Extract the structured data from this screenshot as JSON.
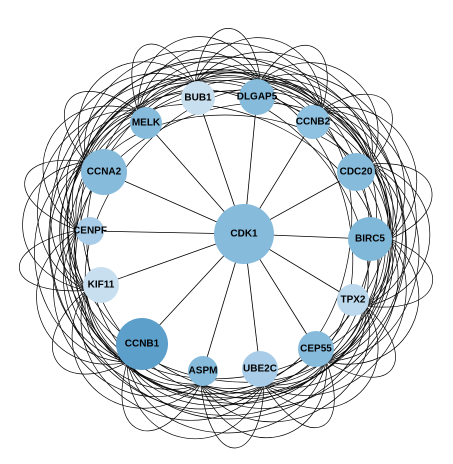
{
  "network": {
    "hub": {
      "label": "CDK1",
      "fill": "#86bbdc"
    },
    "nodes": [
      {
        "id": "bub1",
        "label": "BUB1",
        "fill": "#c8dff0"
      },
      {
        "id": "dlgap5",
        "label": "DLGAP5",
        "fill": "#86bbdc"
      },
      {
        "id": "ccnb2",
        "label": "CCNB2",
        "fill": "#8fc1e0"
      },
      {
        "id": "cdc20",
        "label": "CDC20",
        "fill": "#86bbdc"
      },
      {
        "id": "birc5",
        "label": "BIRC5",
        "fill": "#80b8da"
      },
      {
        "id": "tpx2",
        "label": "TPX2",
        "fill": "#bcd8ed"
      },
      {
        "id": "cep55",
        "label": "CEP55",
        "fill": "#86bbdc"
      },
      {
        "id": "ube2c",
        "label": "UBE2C",
        "fill": "#a9cde8"
      },
      {
        "id": "aspm",
        "label": "ASPM",
        "fill": "#86bbdc"
      },
      {
        "id": "ccnb1",
        "label": "CCNB1",
        "fill": "#5c9fcb"
      },
      {
        "id": "kif11",
        "label": "KIF11",
        "fill": "#c8dff0"
      },
      {
        "id": "cenpf",
        "label": "CENPF",
        "fill": "#a9cde8"
      },
      {
        "id": "ccna2",
        "label": "CCNA2",
        "fill": "#86bbdc"
      },
      {
        "id": "melk",
        "label": "MELK",
        "fill": "#86bbdc"
      }
    ],
    "edge_color": "#000000"
  }
}
